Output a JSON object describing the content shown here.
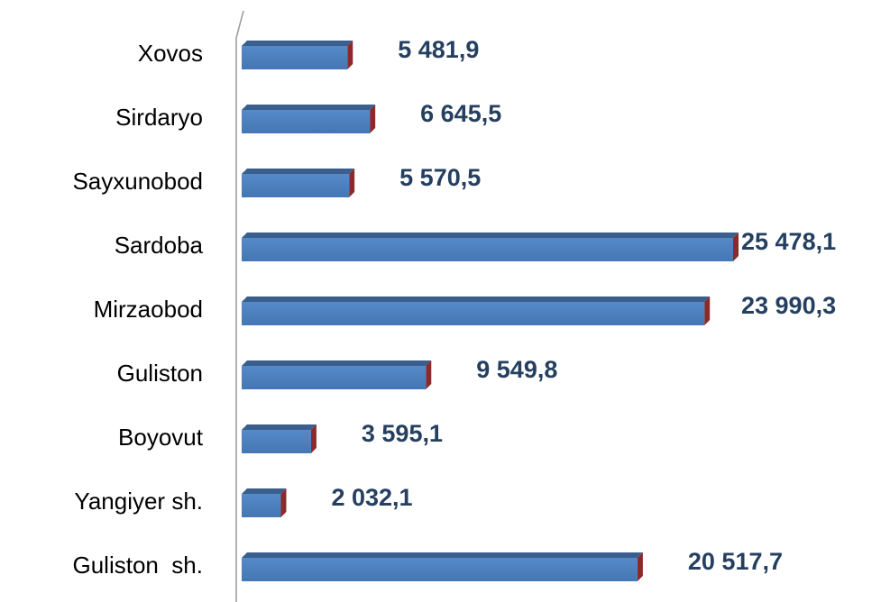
{
  "chart_data": {
    "type": "bar",
    "orientation": "horizontal",
    "categories": [
      "Xovos",
      "Sirdaryo",
      "Sayxunobod",
      "Sardoba",
      "Mirzaobod",
      "Guliston",
      "Boyovut",
      "Yangiyer sh.",
      "Guliston  sh."
    ],
    "values": [
      5481.9,
      6645.5,
      5570.5,
      25478.1,
      23990.3,
      9549.8,
      3595.1,
      2032.1,
      20517.7
    ],
    "value_labels": [
      "5 481,9",
      "6 645,5",
      "5 570,5",
      "25 478,1",
      "23 990,3",
      "9 549,8",
      "3 595,1",
      "2 032,1",
      "20 517,7"
    ],
    "color": "#4f81bd"
  }
}
